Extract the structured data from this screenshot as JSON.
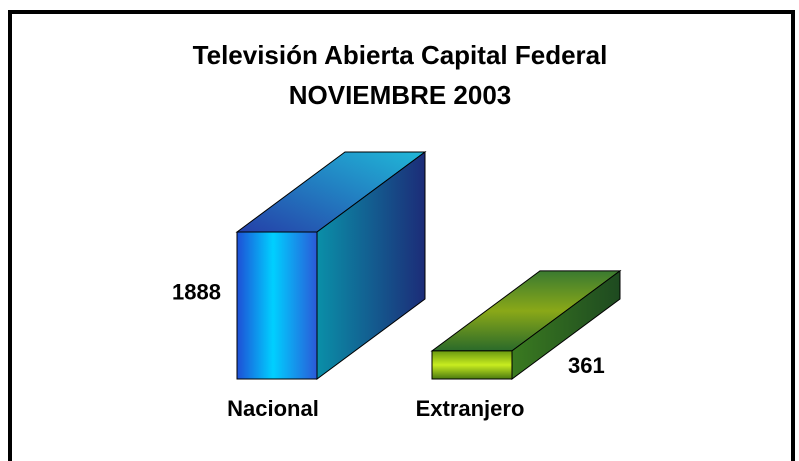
{
  "chart_data": {
    "type": "bar3d",
    "title": "Televisión Abierta Capital Federal",
    "subtitle": "NOVIEMBRE 2003",
    "categories": [
      "Nacional",
      "Extranjero"
    ],
    "values": [
      1888,
      361
    ]
  }
}
